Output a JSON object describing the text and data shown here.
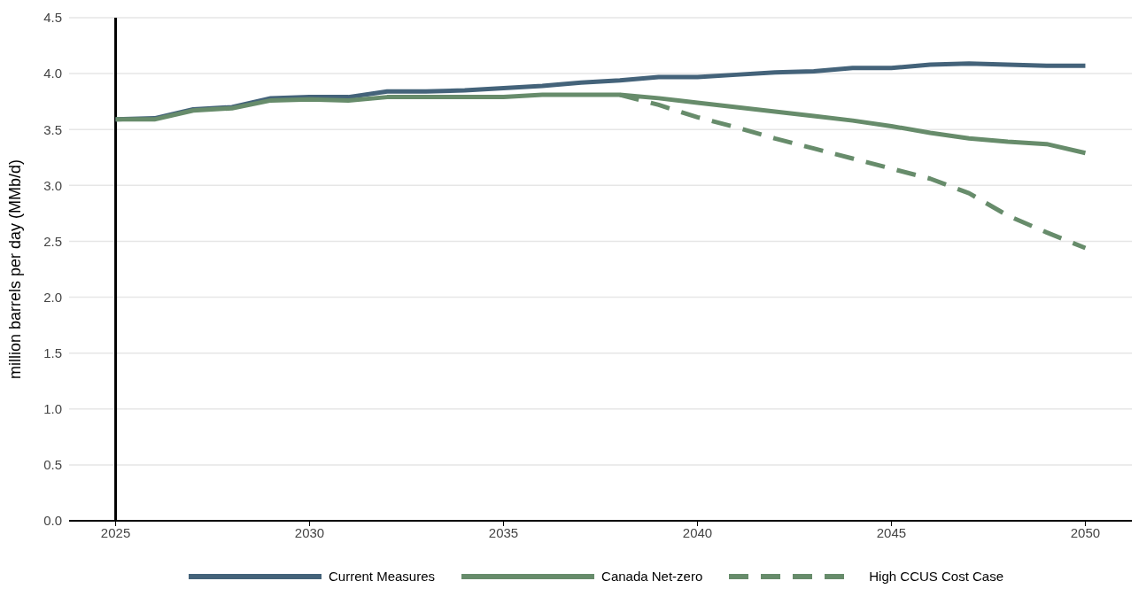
{
  "chart_data": {
    "type": "line",
    "ylabel": "million barrels per day (MMb/d)",
    "x": [
      2025,
      2026,
      2027,
      2028,
      2029,
      2030,
      2031,
      2032,
      2033,
      2034,
      2035,
      2036,
      2037,
      2038,
      2039,
      2040,
      2041,
      2042,
      2043,
      2044,
      2045,
      2046,
      2047,
      2048,
      2049,
      2050
    ],
    "series": [
      {
        "name": "Current Measures",
        "color": "#44637a",
        "line_style": "solid",
        "values": [
          3.59,
          3.6,
          3.68,
          3.7,
          3.78,
          3.79,
          3.79,
          3.84,
          3.84,
          3.85,
          3.87,
          3.89,
          3.92,
          3.94,
          3.97,
          3.97,
          3.99,
          4.01,
          4.02,
          4.05,
          4.05,
          4.08,
          4.09,
          4.08,
          4.07,
          4.07
        ]
      },
      {
        "name": "Canada Net-zero",
        "color": "#678c6b",
        "line_style": "solid",
        "values": [
          3.59,
          3.59,
          3.67,
          3.69,
          3.76,
          3.77,
          3.76,
          3.79,
          3.79,
          3.79,
          3.79,
          3.81,
          3.81,
          3.81,
          3.78,
          3.74,
          3.7,
          3.66,
          3.62,
          3.58,
          3.53,
          3.47,
          3.42,
          3.39,
          3.37,
          3.29
        ]
      },
      {
        "name": "High CCUS Cost Case",
        "color": "#678c6b",
        "line_style": "dashed",
        "values": [
          null,
          null,
          null,
          null,
          null,
          null,
          null,
          null,
          null,
          null,
          null,
          null,
          null,
          3.81,
          3.72,
          3.61,
          3.52,
          3.42,
          3.33,
          3.24,
          3.15,
          3.06,
          2.93,
          2.73,
          2.58,
          2.44
        ]
      }
    ],
    "xlim": [
      2023.8,
      2051.2
    ],
    "xticks": [
      2025,
      2030,
      2035,
      2040,
      2045,
      2050
    ],
    "ylim": [
      0,
      4.5
    ],
    "yticks": [
      {
        "value": 0,
        "label": "0.0"
      },
      0.5,
      {
        "value": 1,
        "label": "1.0"
      },
      1.5,
      {
        "value": 2,
        "label": "2.0"
      },
      2.5,
      {
        "value": 3,
        "label": "3.0"
      },
      3.5,
      {
        "value": 4,
        "label": "4.0"
      },
      4.5
    ],
    "ref_lines": [
      {
        "axis": "x",
        "value": 2025,
        "color": "#000000"
      }
    ],
    "grid": "y",
    "legend": "bottom",
    "marker": "none"
  }
}
